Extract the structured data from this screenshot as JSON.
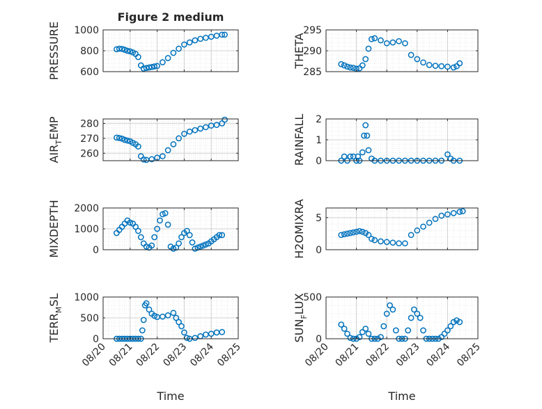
{
  "figure_title": "Figure 2 medium",
  "colors": {
    "marker": "#0072BD",
    "axes": "#262626",
    "grid": "#d0d0d0",
    "minorgrid": "#e2e2e2",
    "background": "#ffffff"
  },
  "chart_data": [
    {
      "type": "scatter",
      "ylabel": "PRESSURE",
      "title": "Figure 2 medium",
      "ylim": [
        600,
        1000
      ],
      "yticks": [
        600,
        800,
        1000
      ],
      "xlabel": "",
      "x": [
        0.5,
        0.6,
        0.7,
        0.8,
        0.9,
        1.0,
        1.1,
        1.2,
        1.3,
        1.4,
        1.5,
        1.6,
        1.7,
        1.8,
        1.9,
        2.0,
        2.2,
        2.4,
        2.6,
        2.8,
        3.0,
        3.2,
        3.4,
        3.6,
        3.8,
        4.0,
        4.2,
        4.4,
        4.5
      ],
      "y": [
        815,
        820,
        818,
        810,
        800,
        795,
        785,
        770,
        740,
        660,
        630,
        635,
        640,
        645,
        650,
        655,
        690,
        730,
        780,
        820,
        860,
        880,
        900,
        915,
        925,
        935,
        945,
        955,
        955
      ]
    },
    {
      "type": "scatter",
      "ylabel": "THETA",
      "ylim": [
        285,
        295
      ],
      "yticks": [
        285,
        290,
        295
      ],
      "x": [
        0.5,
        0.6,
        0.7,
        0.8,
        0.9,
        1.0,
        1.1,
        1.2,
        1.3,
        1.4,
        1.5,
        1.6,
        1.8,
        2.0,
        2.2,
        2.4,
        2.6,
        2.8,
        3.0,
        3.2,
        3.4,
        3.6,
        3.8,
        4.0,
        4.2,
        4.3,
        4.4
      ],
      "y": [
        286.8,
        286.5,
        286.2,
        286.0,
        285.9,
        285.7,
        285.8,
        286.5,
        288,
        290.5,
        292.8,
        293.0,
        292.5,
        291.8,
        292.0,
        292.3,
        291.8,
        289,
        288,
        287.2,
        286.6,
        286.4,
        286.3,
        286.2,
        286.0,
        286.3,
        287.0
      ]
    },
    {
      "type": "scatter",
      "ylabel": "AIR_TEMP",
      "ylim": [
        255,
        283
      ],
      "yticks": [
        260,
        270,
        280
      ],
      "x": [
        0.5,
        0.6,
        0.7,
        0.8,
        0.9,
        1.0,
        1.1,
        1.2,
        1.3,
        1.4,
        1.5,
        1.6,
        1.8,
        2.0,
        2.2,
        2.4,
        2.6,
        2.8,
        3.0,
        3.2,
        3.4,
        3.6,
        3.8,
        4.0,
        4.2,
        4.4,
        4.5
      ],
      "y": [
        270.5,
        270.2,
        269.8,
        269.0,
        268.5,
        268.0,
        267.0,
        266.0,
        264.5,
        258.0,
        255.8,
        255.5,
        256.0,
        257.0,
        258.0,
        262.0,
        266.0,
        270.0,
        273.0,
        274.5,
        275.5,
        276.5,
        277.5,
        278.5,
        279.0,
        280.0,
        282.5
      ]
    },
    {
      "type": "scatter",
      "ylabel": "RAINFALL",
      "ylim": [
        0,
        2
      ],
      "yticks": [
        0,
        1,
        2
      ],
      "x": [
        0.5,
        0.6,
        0.7,
        0.8,
        0.9,
        1.0,
        1.05,
        1.1,
        1.2,
        1.25,
        1.3,
        1.35,
        1.4,
        1.5,
        1.6,
        1.8,
        2.0,
        2.2,
        2.4,
        2.6,
        2.8,
        3.0,
        3.2,
        3.4,
        3.6,
        3.8,
        4.0,
        4.1,
        4.2,
        4.4
      ],
      "y": [
        0,
        0.2,
        0,
        0.2,
        0.2,
        0,
        0.2,
        0,
        0.4,
        1.2,
        1.7,
        1.2,
        0.5,
        0.1,
        0,
        0,
        0,
        0,
        0,
        0,
        0,
        0,
        0,
        0,
        0,
        0,
        0.3,
        0.1,
        0,
        0
      ]
    },
    {
      "type": "scatter",
      "ylabel": "MIXDEPTH",
      "ylim": [
        0,
        2000
      ],
      "yticks": [
        0,
        1000,
        2000
      ],
      "x": [
        0.5,
        0.6,
        0.7,
        0.8,
        0.9,
        1.0,
        1.1,
        1.2,
        1.3,
        1.4,
        1.5,
        1.6,
        1.7,
        1.8,
        1.9,
        2.0,
        2.1,
        2.2,
        2.3,
        2.4,
        2.5,
        2.6,
        2.7,
        2.8,
        2.9,
        3.0,
        3.1,
        3.2,
        3.3,
        3.4,
        3.5,
        3.6,
        3.7,
        3.8,
        3.9,
        4.0,
        4.1,
        4.2,
        4.3,
        4.4
      ],
      "y": [
        800,
        950,
        1100,
        1250,
        1400,
        1300,
        1250,
        1100,
        900,
        600,
        300,
        150,
        100,
        200,
        600,
        1000,
        1400,
        1700,
        1750,
        1200,
        150,
        50,
        100,
        300,
        600,
        800,
        900,
        700,
        350,
        50,
        100,
        150,
        200,
        250,
        300,
        400,
        500,
        600,
        700,
        700
      ]
    },
    {
      "type": "scatter",
      "ylabel": "H2OMIXRA",
      "ylim": [
        0,
        6.5
      ],
      "yticks": [
        0,
        5
      ],
      "x": [
        0.5,
        0.6,
        0.7,
        0.8,
        0.9,
        1.0,
        1.1,
        1.2,
        1.3,
        1.4,
        1.5,
        1.6,
        1.8,
        2.0,
        2.2,
        2.4,
        2.6,
        2.8,
        3.0,
        3.2,
        3.4,
        3.6,
        3.8,
        4.0,
        4.2,
        4.4,
        4.5
      ],
      "y": [
        2.3,
        2.4,
        2.5,
        2.6,
        2.7,
        2.8,
        2.9,
        2.8,
        2.6,
        2.3,
        1.7,
        1.5,
        1.3,
        1.2,
        1.1,
        1.0,
        1.0,
        2.3,
        3.0,
        3.6,
        4.2,
        4.8,
        5.3,
        5.5,
        5.7,
        5.9,
        6.0
      ]
    },
    {
      "type": "scatter",
      "ylabel": "TERR_MSL",
      "xlabel": "Time",
      "ylim": [
        0,
        1000
      ],
      "yticks": [
        0,
        500,
        1000
      ],
      "xlim": [
        0,
        5
      ],
      "xticks": [
        0,
        1,
        2,
        3,
        4,
        5
      ],
      "xticklabels": [
        "08/20",
        "08/21",
        "08/22",
        "08/23",
        "08/24",
        "08/25"
      ],
      "x": [
        0.5,
        0.6,
        0.7,
        0.8,
        0.9,
        1.0,
        1.1,
        1.2,
        1.3,
        1.4,
        1.45,
        1.5,
        1.55,
        1.6,
        1.7,
        1.8,
        1.9,
        2.0,
        2.2,
        2.4,
        2.6,
        2.7,
        2.8,
        2.9,
        3.0,
        3.1,
        3.2,
        3.4,
        3.6,
        3.8,
        4.0,
        4.2,
        4.4
      ],
      "y": [
        0,
        0,
        0,
        0,
        0,
        0,
        0,
        0,
        0,
        0,
        200,
        450,
        800,
        850,
        700,
        600,
        550,
        520,
        530,
        560,
        620,
        500,
        400,
        300,
        150,
        20,
        0,
        20,
        60,
        100,
        120,
        150,
        160
      ]
    },
    {
      "type": "scatter",
      "ylabel": "SUN_FLUX",
      "xlabel": "Time",
      "ylim": [
        0,
        500
      ],
      "yticks": [
        0,
        500
      ],
      "xlim": [
        0,
        5
      ],
      "xticks": [
        0,
        1,
        2,
        3,
        4,
        5
      ],
      "xticklabels": [
        "08/20",
        "08/21",
        "08/22",
        "08/23",
        "08/24",
        "08/25"
      ],
      "x": [
        0.5,
        0.6,
        0.7,
        0.8,
        0.9,
        1.0,
        1.1,
        1.2,
        1.3,
        1.4,
        1.5,
        1.6,
        1.7,
        1.8,
        1.9,
        2.0,
        2.1,
        2.2,
        2.3,
        2.4,
        2.5,
        2.6,
        2.7,
        2.8,
        2.9,
        3.0,
        3.1,
        3.2,
        3.3,
        3.4,
        3.5,
        3.6,
        3.7,
        3.8,
        3.9,
        4.0,
        4.1,
        4.2,
        4.3,
        4.4
      ],
      "y": [
        170,
        120,
        60,
        10,
        0,
        0,
        20,
        80,
        120,
        60,
        0,
        0,
        0,
        20,
        150,
        300,
        400,
        350,
        100,
        0,
        0,
        0,
        100,
        250,
        350,
        300,
        250,
        100,
        0,
        0,
        0,
        0,
        0,
        20,
        60,
        100,
        150,
        200,
        220,
        200
      ]
    }
  ]
}
